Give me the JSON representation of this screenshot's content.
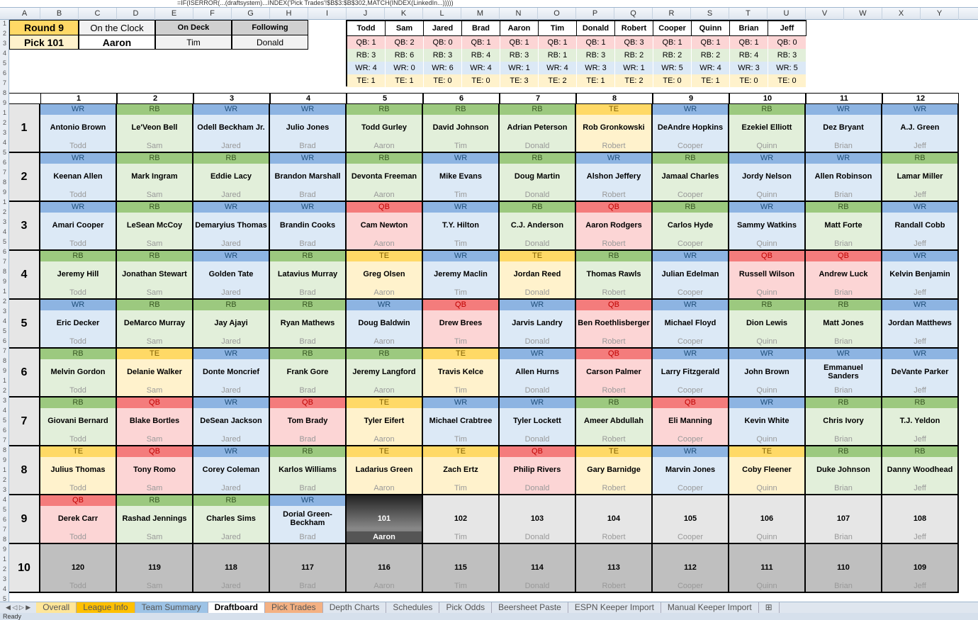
{
  "formula_bar": "=IF(ISERROR(...(draftsystem)...INDEX('Pick Trades'!$B$3:$B$302,MATCH(INDEX(LinkedIn...)))))",
  "columns": [
    "A",
    "B",
    "C",
    "D",
    "E",
    "F",
    "G",
    "H",
    "I",
    "J",
    "K",
    "L",
    "M",
    "N",
    "O",
    "P",
    "Q",
    "R",
    "S",
    "T",
    "U",
    "V",
    "W",
    "X",
    "Y"
  ],
  "status": {
    "round": "Round 9",
    "pick": "Pick 101",
    "on_clock_label": "On the Clock",
    "on_clock": "Aaron",
    "on_deck_label": "On Deck",
    "on_deck": "Tim",
    "following_label": "Following",
    "following": "Donald"
  },
  "owners": [
    "Todd",
    "Sam",
    "Jared",
    "Brad",
    "Aaron",
    "Tim",
    "Donald",
    "Robert",
    "Cooper",
    "Quinn",
    "Brian",
    "Jeff"
  ],
  "position_counts": {
    "QB": [
      "QB: 1",
      "QB: 2",
      "QB: 0",
      "QB: 1",
      "QB: 1",
      "QB: 1",
      "QB: 1",
      "QB: 3",
      "QB: 1",
      "QB: 1",
      "QB: 1",
      "QB: 0"
    ],
    "RB": [
      "RB: 3",
      "RB: 6",
      "RB: 3",
      "RB: 4",
      "RB: 3",
      "RB: 1",
      "RB: 3",
      "RB: 2",
      "RB: 2",
      "RB: 2",
      "RB: 4",
      "RB: 3"
    ],
    "WR": [
      "WR: 4",
      "WR: 0",
      "WR: 6",
      "WR: 4",
      "WR: 1",
      "WR: 4",
      "WR: 3",
      "WR: 1",
      "WR: 5",
      "WR: 4",
      "WR: 3",
      "WR: 5"
    ],
    "TE": [
      "TE: 1",
      "TE: 1",
      "TE: 0",
      "TE: 0",
      "TE: 3",
      "TE: 2",
      "TE: 1",
      "TE: 2",
      "TE: 0",
      "TE: 1",
      "TE: 0",
      "TE: 0"
    ]
  },
  "pick_columns": [
    "1",
    "2",
    "3",
    "4",
    "5",
    "6",
    "7",
    "8",
    "9",
    "10",
    "11",
    "12"
  ],
  "colors": {
    "QB": [
      "#f47c7c",
      "#fcd5d5"
    ],
    "RB": [
      "#9cc97f",
      "#e2efda"
    ],
    "WR": [
      "#8db4e2",
      "#dce9f6"
    ],
    "TE": [
      "#ffd966",
      "#fff2cc"
    ],
    "pending": "#e6e6e6",
    "future": "#bfbfbf"
  },
  "rounds": [
    {
      "label": "1",
      "picks": [
        [
          "WR",
          "Antonio Brown"
        ],
        [
          "RB",
          "Le'Veon Bell"
        ],
        [
          "WR",
          "Odell Beckham Jr."
        ],
        [
          "WR",
          "Julio Jones"
        ],
        [
          "RB",
          "Todd Gurley"
        ],
        [
          "RB",
          "David Johnson"
        ],
        [
          "RB",
          "Adrian Peterson"
        ],
        [
          "TE",
          "Rob Gronkowski"
        ],
        [
          "WR",
          "DeAndre Hopkins"
        ],
        [
          "RB",
          "Ezekiel Elliott"
        ],
        [
          "WR",
          "Dez Bryant"
        ],
        [
          "WR",
          "A.J. Green"
        ]
      ]
    },
    {
      "label": "2",
      "picks": [
        [
          "WR",
          "Keenan Allen"
        ],
        [
          "RB",
          "Mark Ingram"
        ],
        [
          "RB",
          "Eddie Lacy"
        ],
        [
          "WR",
          "Brandon Marshall"
        ],
        [
          "RB",
          "Devonta Freeman"
        ],
        [
          "WR",
          "Mike Evans"
        ],
        [
          "RB",
          "Doug Martin"
        ],
        [
          "WR",
          "Alshon Jeffery"
        ],
        [
          "RB",
          "Jamaal Charles"
        ],
        [
          "WR",
          "Jordy Nelson"
        ],
        [
          "WR",
          "Allen Robinson"
        ],
        [
          "RB",
          "Lamar Miller"
        ]
      ]
    },
    {
      "label": "3",
      "picks": [
        [
          "WR",
          "Amari Cooper"
        ],
        [
          "RB",
          "LeSean McCoy"
        ],
        [
          "WR",
          "Demaryius Thomas"
        ],
        [
          "WR",
          "Brandin Cooks"
        ],
        [
          "QB",
          "Cam Newton"
        ],
        [
          "WR",
          "T.Y. Hilton"
        ],
        [
          "RB",
          "C.J. Anderson"
        ],
        [
          "QB",
          "Aaron Rodgers"
        ],
        [
          "RB",
          "Carlos Hyde"
        ],
        [
          "WR",
          "Sammy Watkins"
        ],
        [
          "RB",
          "Matt Forte"
        ],
        [
          "WR",
          "Randall Cobb"
        ]
      ]
    },
    {
      "label": "4",
      "picks": [
        [
          "RB",
          "Jeremy Hill"
        ],
        [
          "RB",
          "Jonathan Stewart"
        ],
        [
          "WR",
          "Golden Tate"
        ],
        [
          "RB",
          "Latavius Murray"
        ],
        [
          "TE",
          "Greg Olsen"
        ],
        [
          "WR",
          "Jeremy Maclin"
        ],
        [
          "TE",
          "Jordan Reed"
        ],
        [
          "RB",
          "Thomas Rawls"
        ],
        [
          "WR",
          "Julian Edelman"
        ],
        [
          "QB",
          "Russell Wilson"
        ],
        [
          "QB",
          "Andrew Luck"
        ],
        [
          "WR",
          "Kelvin Benjamin"
        ]
      ]
    },
    {
      "label": "5",
      "picks": [
        [
          "WR",
          "Eric Decker"
        ],
        [
          "RB",
          "DeMarco Murray"
        ],
        [
          "RB",
          "Jay Ajayi"
        ],
        [
          "RB",
          "Ryan Mathews"
        ],
        [
          "WR",
          "Doug Baldwin"
        ],
        [
          "QB",
          "Drew Brees"
        ],
        [
          "WR",
          "Jarvis Landry"
        ],
        [
          "QB",
          "Ben Roethlisberger"
        ],
        [
          "WR",
          "Michael Floyd"
        ],
        [
          "RB",
          "Dion Lewis"
        ],
        [
          "RB",
          "Matt Jones"
        ],
        [
          "WR",
          "Jordan Matthews"
        ]
      ]
    },
    {
      "label": "6",
      "picks": [
        [
          "RB",
          "Melvin Gordon"
        ],
        [
          "TE",
          "Delanie Walker"
        ],
        [
          "WR",
          "Donte Moncrief"
        ],
        [
          "RB",
          "Frank Gore"
        ],
        [
          "RB",
          "Jeremy Langford"
        ],
        [
          "TE",
          "Travis Kelce"
        ],
        [
          "WR",
          "Allen Hurns"
        ],
        [
          "QB",
          "Carson Palmer"
        ],
        [
          "WR",
          "Larry Fitzgerald"
        ],
        [
          "WR",
          "John Brown"
        ],
        [
          "WR",
          "Emmanuel Sanders"
        ],
        [
          "WR",
          "DeVante Parker"
        ]
      ]
    },
    {
      "label": "7",
      "picks": [
        [
          "RB",
          "Giovani Bernard"
        ],
        [
          "QB",
          "Blake Bortles"
        ],
        [
          "WR",
          "DeSean Jackson"
        ],
        [
          "QB",
          "Tom Brady"
        ],
        [
          "TE",
          "Tyler Eifert"
        ],
        [
          "WR",
          "Michael Crabtree"
        ],
        [
          "WR",
          "Tyler Lockett"
        ],
        [
          "RB",
          "Ameer Abdullah"
        ],
        [
          "QB",
          "Eli Manning"
        ],
        [
          "WR",
          "Kevin White"
        ],
        [
          "RB",
          "Chris Ivory"
        ],
        [
          "RB",
          "T.J. Yeldon"
        ]
      ]
    },
    {
      "label": "8",
      "picks": [
        [
          "TE",
          "Julius Thomas"
        ],
        [
          "QB",
          "Tony Romo"
        ],
        [
          "WR",
          "Corey Coleman"
        ],
        [
          "RB",
          "Karlos Williams"
        ],
        [
          "TE",
          "Ladarius Green"
        ],
        [
          "TE",
          "Zach Ertz"
        ],
        [
          "QB",
          "Philip Rivers"
        ],
        [
          "TE",
          "Gary Barnidge"
        ],
        [
          "WR",
          "Marvin Jones"
        ],
        [
          "TE",
          "Coby Fleener"
        ],
        [
          "RB",
          "Duke Johnson"
        ],
        [
          "RB",
          "Danny Woodhead"
        ]
      ]
    },
    {
      "label": "9",
      "picks": [
        [
          "QB",
          "Derek Carr"
        ],
        [
          "RB",
          "Rashad Jennings"
        ],
        [
          "RB",
          "Charles Sims"
        ],
        [
          "WR",
          "Dorial Green-Beckham"
        ],
        [
          "",
          ""
        ],
        [
          "",
          ""
        ],
        [
          "",
          ""
        ],
        [
          "",
          ""
        ],
        [
          "",
          ""
        ],
        [
          "",
          ""
        ],
        [
          "",
          ""
        ],
        [
          "",
          ""
        ]
      ],
      "pending": [
        "",
        "",
        "",
        "",
        "101",
        "102",
        "103",
        "104",
        "105",
        "106",
        "107",
        "108"
      ],
      "current_index": 4
    },
    {
      "label": "10",
      "future": true,
      "pending": [
        "120",
        "119",
        "118",
        "117",
        "116",
        "115",
        "114",
        "113",
        "112",
        "111",
        "110",
        "109"
      ]
    }
  ],
  "tabs": [
    "Overall",
    "League Info",
    "Team Summary",
    "Draftboard",
    "Pick Trades",
    "Depth Charts",
    "Schedules",
    "Pick Odds",
    "Beersheet Paste",
    "ESPN Keeper Import",
    "Manual Keeper Import"
  ],
  "tab_colors": [
    "#ffe699",
    "#ffc000",
    "#9dc3e6",
    "#ffffff",
    "#f4b183",
    "",
    "",
    "",
    "",
    "",
    ""
  ],
  "active_tab": "Draftboard",
  "status_text": "Ready"
}
